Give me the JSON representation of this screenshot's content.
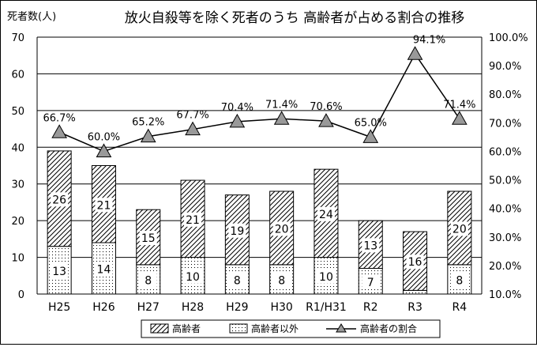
{
  "chart_data": {
    "type": "bar",
    "title": "放火自殺等を除く死者のうち 高齢者が占める割合の推移",
    "ylabel": "死者数(人)",
    "categories": [
      "H25",
      "H26",
      "H27",
      "H28",
      "H29",
      "H30",
      "R1/H31",
      "R2",
      "R3",
      "R4"
    ],
    "ylim": [
      0,
      70
    ],
    "y_ticks": [
      "0",
      "10",
      "20",
      "30",
      "40",
      "50",
      "60",
      "70"
    ],
    "y2lim": [
      10.0,
      100.0
    ],
    "y2_ticks": [
      "10.0%",
      "20.0%",
      "30.0%",
      "40.0%",
      "50.0%",
      "60.0%",
      "70.0%",
      "80.0%",
      "90.0%",
      "100.0%"
    ],
    "series": [
      {
        "name": "高齢者以外",
        "kind": "bar",
        "pattern": "dots",
        "values": [
          13,
          14,
          8,
          10,
          8,
          8,
          10,
          7,
          1,
          8
        ],
        "labels": [
          "13",
          "14",
          "8",
          "10",
          "8",
          "8",
          "10",
          "7",
          "",
          "8"
        ]
      },
      {
        "name": "高齢者",
        "kind": "bar",
        "pattern": "diagonal-hatch",
        "values": [
          26,
          21,
          15,
          21,
          19,
          20,
          24,
          13,
          16,
          20
        ],
        "labels": [
          "26",
          "21",
          "15",
          "21",
          "19",
          "20",
          "24",
          "13",
          "16",
          "20"
        ]
      },
      {
        "name": "高齢者の割合",
        "kind": "line",
        "axis": "right",
        "marker": "triangle",
        "values": [
          66.7,
          60.0,
          65.2,
          67.7,
          70.4,
          71.4,
          70.6,
          65.0,
          94.1,
          71.4
        ],
        "labels": [
          "66.7%",
          "60.0%",
          "65.2%",
          "67.7%",
          "70.4%",
          "71.4%",
          "70.6%",
          "65.0%",
          "94.1%",
          "71.4%"
        ]
      }
    ],
    "legend": {
      "position": "bottom",
      "items": [
        "高齢者",
        "高齢者以外",
        "高齢者の割合"
      ]
    },
    "grid": true
  }
}
